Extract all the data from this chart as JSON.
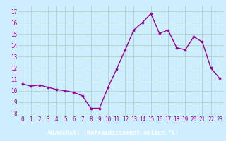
{
  "x": [
    0,
    1,
    2,
    3,
    4,
    5,
    6,
    7,
    8,
    9,
    10,
    11,
    12,
    13,
    14,
    15,
    16,
    17,
    18,
    19,
    20,
    21,
    22,
    23
  ],
  "y": [
    10.6,
    10.4,
    10.5,
    10.3,
    10.1,
    10.0,
    9.85,
    9.55,
    8.45,
    8.45,
    10.3,
    11.9,
    13.6,
    15.35,
    16.0,
    16.8,
    15.05,
    15.35,
    13.8,
    13.6,
    14.75,
    14.3,
    12.0,
    11.1
  ],
  "line_color": "#990099",
  "marker_color": "#990099",
  "bg_color": "#cceeff",
  "grid_color": "#aaccbb",
  "xlabel": "Windchill (Refroidissement éolien,°C)",
  "xlabel_bg": "#7777aa",
  "xlabel_fg": "#ffffff",
  "ylabel_ticks": [
    8,
    9,
    10,
    11,
    12,
    13,
    14,
    15,
    16,
    17
  ],
  "ylim": [
    7.8,
    17.5
  ],
  "xlim": [
    -0.5,
    23.5
  ],
  "xticks": [
    0,
    1,
    2,
    3,
    4,
    5,
    6,
    7,
    8,
    9,
    10,
    11,
    12,
    13,
    14,
    15,
    16,
    17,
    18,
    19,
    20,
    21,
    22,
    23
  ],
  "tick_fontsize": 5.5,
  "xlabel_fontsize": 6.0,
  "linewidth": 1.0,
  "markersize": 2.2
}
